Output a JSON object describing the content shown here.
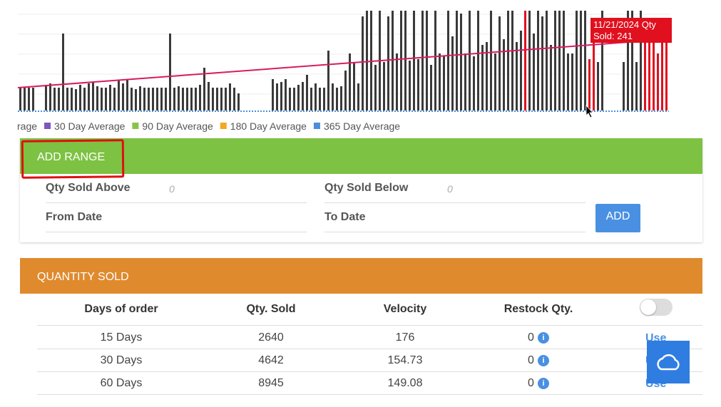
{
  "chart": {
    "type": "bar",
    "values": [
      80,
      80,
      80,
      80,
      null,
      null,
      90,
      95,
      80,
      80,
      270,
      80,
      80,
      75,
      90,
      80,
      95,
      100,
      85,
      80,
      80,
      90,
      80,
      105,
      95,
      110,
      80,
      75,
      85,
      80,
      80,
      80,
      80,
      80,
      80,
      270,
      80,
      85,
      80,
      80,
      80,
      80,
      90,
      150,
      100,
      80,
      80,
      80,
      80,
      95,
      80,
      60,
      null,
      null,
      null,
      null,
      null,
      null,
      null,
      110,
      95,
      100,
      110,
      80,
      80,
      90,
      100,
      125,
      80,
      95,
      80,
      80,
      210,
      95,
      80,
      85,
      140,
      200,
      170,
      95,
      330,
      350,
      350,
      160,
      350,
      170,
      330,
      350,
      200,
      350,
      350,
      175,
      350,
      180,
      350,
      350,
      160,
      350,
      200,
      190,
      350,
      260,
      350,
      340,
      200,
      350,
      190,
      350,
      230,
      240,
      350,
      200,
      330,
      250,
      350,
      350,
      240,
      280,
      350,
      350,
      270,
      350,
      330,
      350,
      230,
      350,
      350,
      350,
      200,
      200,
      350,
      350,
      350,
      180,
      241,
      170,
      350,
      null,
      null,
      null,
      null,
      170,
      350,
      350,
      170,
      350,
      280,
      300,
      280,
      200,
      300,
      280
    ],
    "ylim": [
      0,
      350
    ],
    "color": "#3a3a3a",
    "highlight_color": "#e0101e",
    "highlighted": [
      118,
      133,
      134,
      146,
      147,
      148,
      149,
      150,
      151
    ],
    "trend": [
      80,
      250
    ],
    "trend_color": "#d81b60",
    "tooltip": {
      "date": "11/21/2024 Qty",
      "text": "Sold: 241"
    },
    "legend": [
      {
        "name": "rage",
        "color": null
      },
      {
        "name": "30 Day Average",
        "color": "#7e57c2"
      },
      {
        "name": "90 Day Average",
        "color": "#8bc34a"
      },
      {
        "name": "180 Day Average",
        "color": "#f5a623"
      },
      {
        "name": "365 Day Average",
        "color": "#4a90d9"
      }
    ]
  },
  "add_range": {
    "title": "ADD RANGE",
    "qty_above_label": "Qty Sold Above",
    "qty_above_value": "0",
    "qty_below_label": "Qty Sold Below",
    "qty_below_value": "0",
    "from_date_label": "From Date",
    "to_date_label": "To Date",
    "button": "ADD"
  },
  "quantity_sold": {
    "title": "QUANTITY SOLD",
    "headers": [
      "Days of order",
      "Qty. Sold",
      "Velocity",
      "Restock Qty."
    ],
    "rows": [
      [
        "15 Days",
        2640,
        176,
        0,
        "Use"
      ],
      [
        "30 Days",
        4642,
        154.73,
        0,
        "Use"
      ],
      [
        "60 Days",
        8945,
        149.08,
        0,
        "Use"
      ]
    ]
  }
}
